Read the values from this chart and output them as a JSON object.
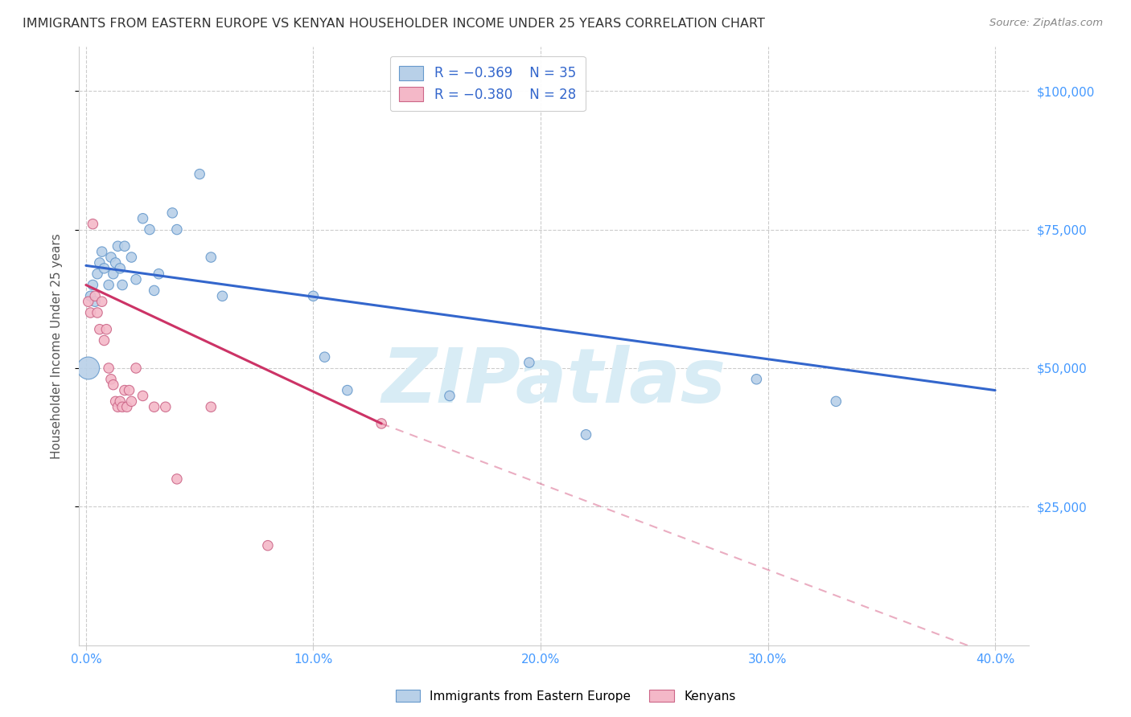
{
  "title": "IMMIGRANTS FROM EASTERN EUROPE VS KENYAN HOUSEHOLDER INCOME UNDER 25 YEARS CORRELATION CHART",
  "source": "Source: ZipAtlas.com",
  "ylabel": "Householder Income Under 25 years",
  "yticks": [
    25000,
    50000,
    75000,
    100000
  ],
  "ytick_labels": [
    "$25,000",
    "$50,000",
    "$75,000",
    "$100,000"
  ],
  "legend_blue_r": "R = −0.369",
  "legend_blue_n": "N = 35",
  "legend_pink_r": "R = −0.380",
  "legend_pink_n": "N = 28",
  "legend_blue_label": "Immigrants from Eastern Europe",
  "legend_pink_label": "Kenyans",
  "watermark": "ZIPatlas",
  "blue_scatter": {
    "x": [
      0.001,
      0.002,
      0.003,
      0.004,
      0.005,
      0.006,
      0.007,
      0.008,
      0.01,
      0.011,
      0.012,
      0.013,
      0.014,
      0.015,
      0.016,
      0.017,
      0.02,
      0.022,
      0.025,
      0.028,
      0.03,
      0.032,
      0.038,
      0.04,
      0.05,
      0.055,
      0.06,
      0.1,
      0.105,
      0.115,
      0.16,
      0.195,
      0.22,
      0.295,
      0.33
    ],
    "y": [
      50000,
      63000,
      65000,
      62000,
      67000,
      69000,
      71000,
      68000,
      65000,
      70000,
      67000,
      69000,
      72000,
      68000,
      65000,
      72000,
      70000,
      66000,
      77000,
      75000,
      64000,
      67000,
      78000,
      75000,
      85000,
      70000,
      63000,
      63000,
      52000,
      46000,
      45000,
      51000,
      38000,
      48000,
      44000
    ],
    "sizes": [
      400,
      80,
      80,
      80,
      80,
      80,
      80,
      80,
      80,
      80,
      80,
      80,
      80,
      80,
      80,
      80,
      80,
      80,
      80,
      80,
      80,
      80,
      80,
      80,
      80,
      80,
      80,
      80,
      80,
      80,
      80,
      80,
      80,
      80,
      80
    ]
  },
  "pink_scatter": {
    "x": [
      0.001,
      0.002,
      0.003,
      0.004,
      0.005,
      0.006,
      0.007,
      0.008,
      0.009,
      0.01,
      0.011,
      0.012,
      0.013,
      0.014,
      0.015,
      0.016,
      0.017,
      0.018,
      0.019,
      0.02,
      0.022,
      0.025,
      0.03,
      0.035,
      0.04,
      0.055,
      0.08,
      0.13
    ],
    "y": [
      62000,
      60000,
      76000,
      63000,
      60000,
      57000,
      62000,
      55000,
      57000,
      50000,
      48000,
      47000,
      44000,
      43000,
      44000,
      43000,
      46000,
      43000,
      46000,
      44000,
      50000,
      45000,
      43000,
      43000,
      30000,
      43000,
      18000,
      40000
    ],
    "sizes": [
      80,
      80,
      80,
      80,
      80,
      80,
      80,
      80,
      80,
      80,
      80,
      80,
      80,
      80,
      80,
      80,
      80,
      80,
      80,
      80,
      80,
      80,
      80,
      80,
      80,
      80,
      80,
      80
    ]
  },
  "blue_line": {
    "x": [
      0.0,
      0.4
    ],
    "y": [
      68500,
      46000
    ]
  },
  "pink_line_solid": {
    "x": [
      0.0,
      0.13
    ],
    "y": [
      65000,
      40000
    ]
  },
  "pink_line_dash": {
    "x": [
      0.13,
      0.42
    ],
    "y": [
      40000,
      -5000
    ]
  },
  "blue_color": "#b8d0e8",
  "blue_edge_color": "#6699cc",
  "blue_line_color": "#3366cc",
  "pink_color": "#f4b8c8",
  "pink_edge_color": "#cc6688",
  "pink_line_color": "#cc3366",
  "xlim": [
    -0.003,
    0.415
  ],
  "ylim": [
    0,
    108000
  ],
  "grid_color": "#cccccc",
  "background_color": "#ffffff",
  "title_color": "#333333",
  "axis_color": "#4499ff",
  "watermark_color": "#d8ecf5"
}
